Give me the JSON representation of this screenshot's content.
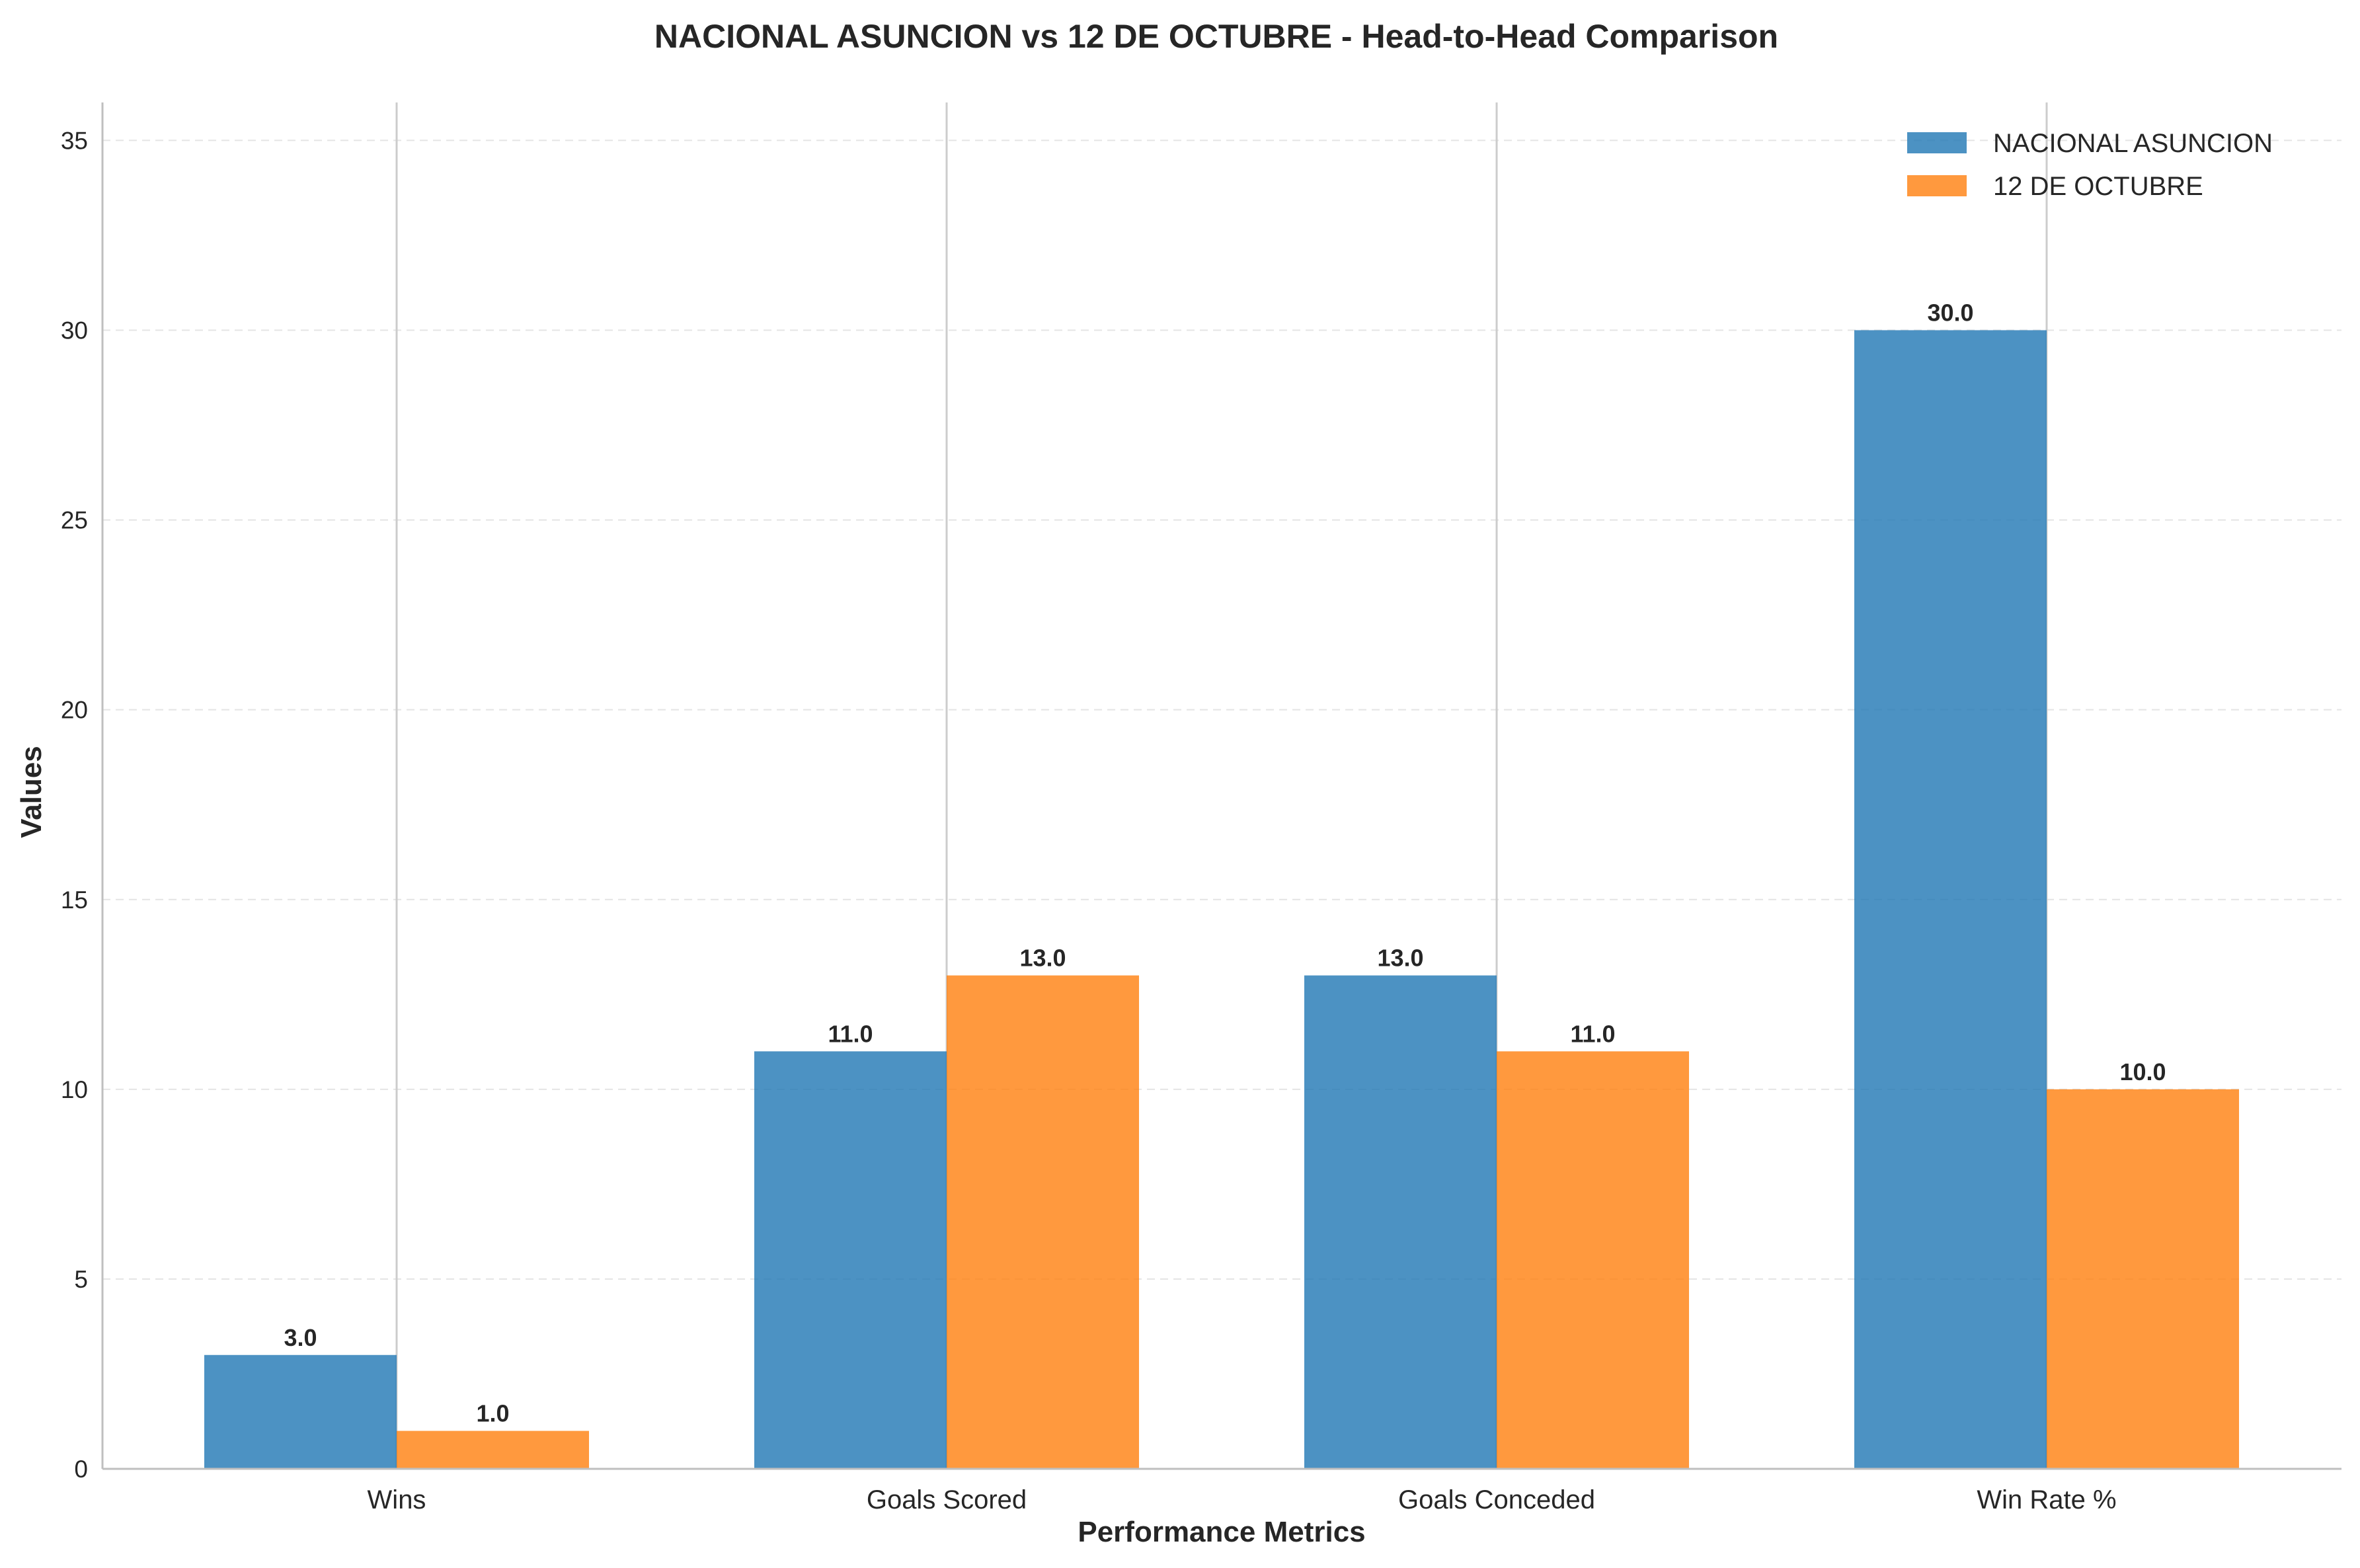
{
  "chart_data": {
    "type": "bar",
    "title": "NACIONAL ASUNCION vs 12 DE OCTUBRE - Head-to-Head Comparison",
    "xlabel": "Performance Metrics",
    "ylabel": "Values",
    "categories": [
      "Wins",
      "Goals Scored",
      "Goals Conceded",
      "Win Rate %"
    ],
    "series": [
      {
        "name": "NACIONAL ASUNCION",
        "values": [
          3.0,
          11.0,
          13.0,
          30.0
        ],
        "color": "#1f77b4"
      },
      {
        "name": "12 DE OCTUBRE",
        "values": [
          1.0,
          13.0,
          11.0,
          10.0
        ],
        "color": "#ff7f0e"
      }
    ],
    "data_labels": [
      [
        "3.0",
        "11.0",
        "13.0",
        "30.0"
      ],
      [
        "1.0",
        "13.0",
        "11.0",
        "10.0"
      ]
    ],
    "ylim": [
      0,
      36
    ],
    "yticks": [
      0,
      5,
      10,
      15,
      20,
      25,
      30,
      35
    ],
    "ytick_labels": [
      "0",
      "5",
      "10",
      "15",
      "20",
      "25",
      "30",
      "35"
    ],
    "grid": true,
    "legend_position": "top-right"
  }
}
